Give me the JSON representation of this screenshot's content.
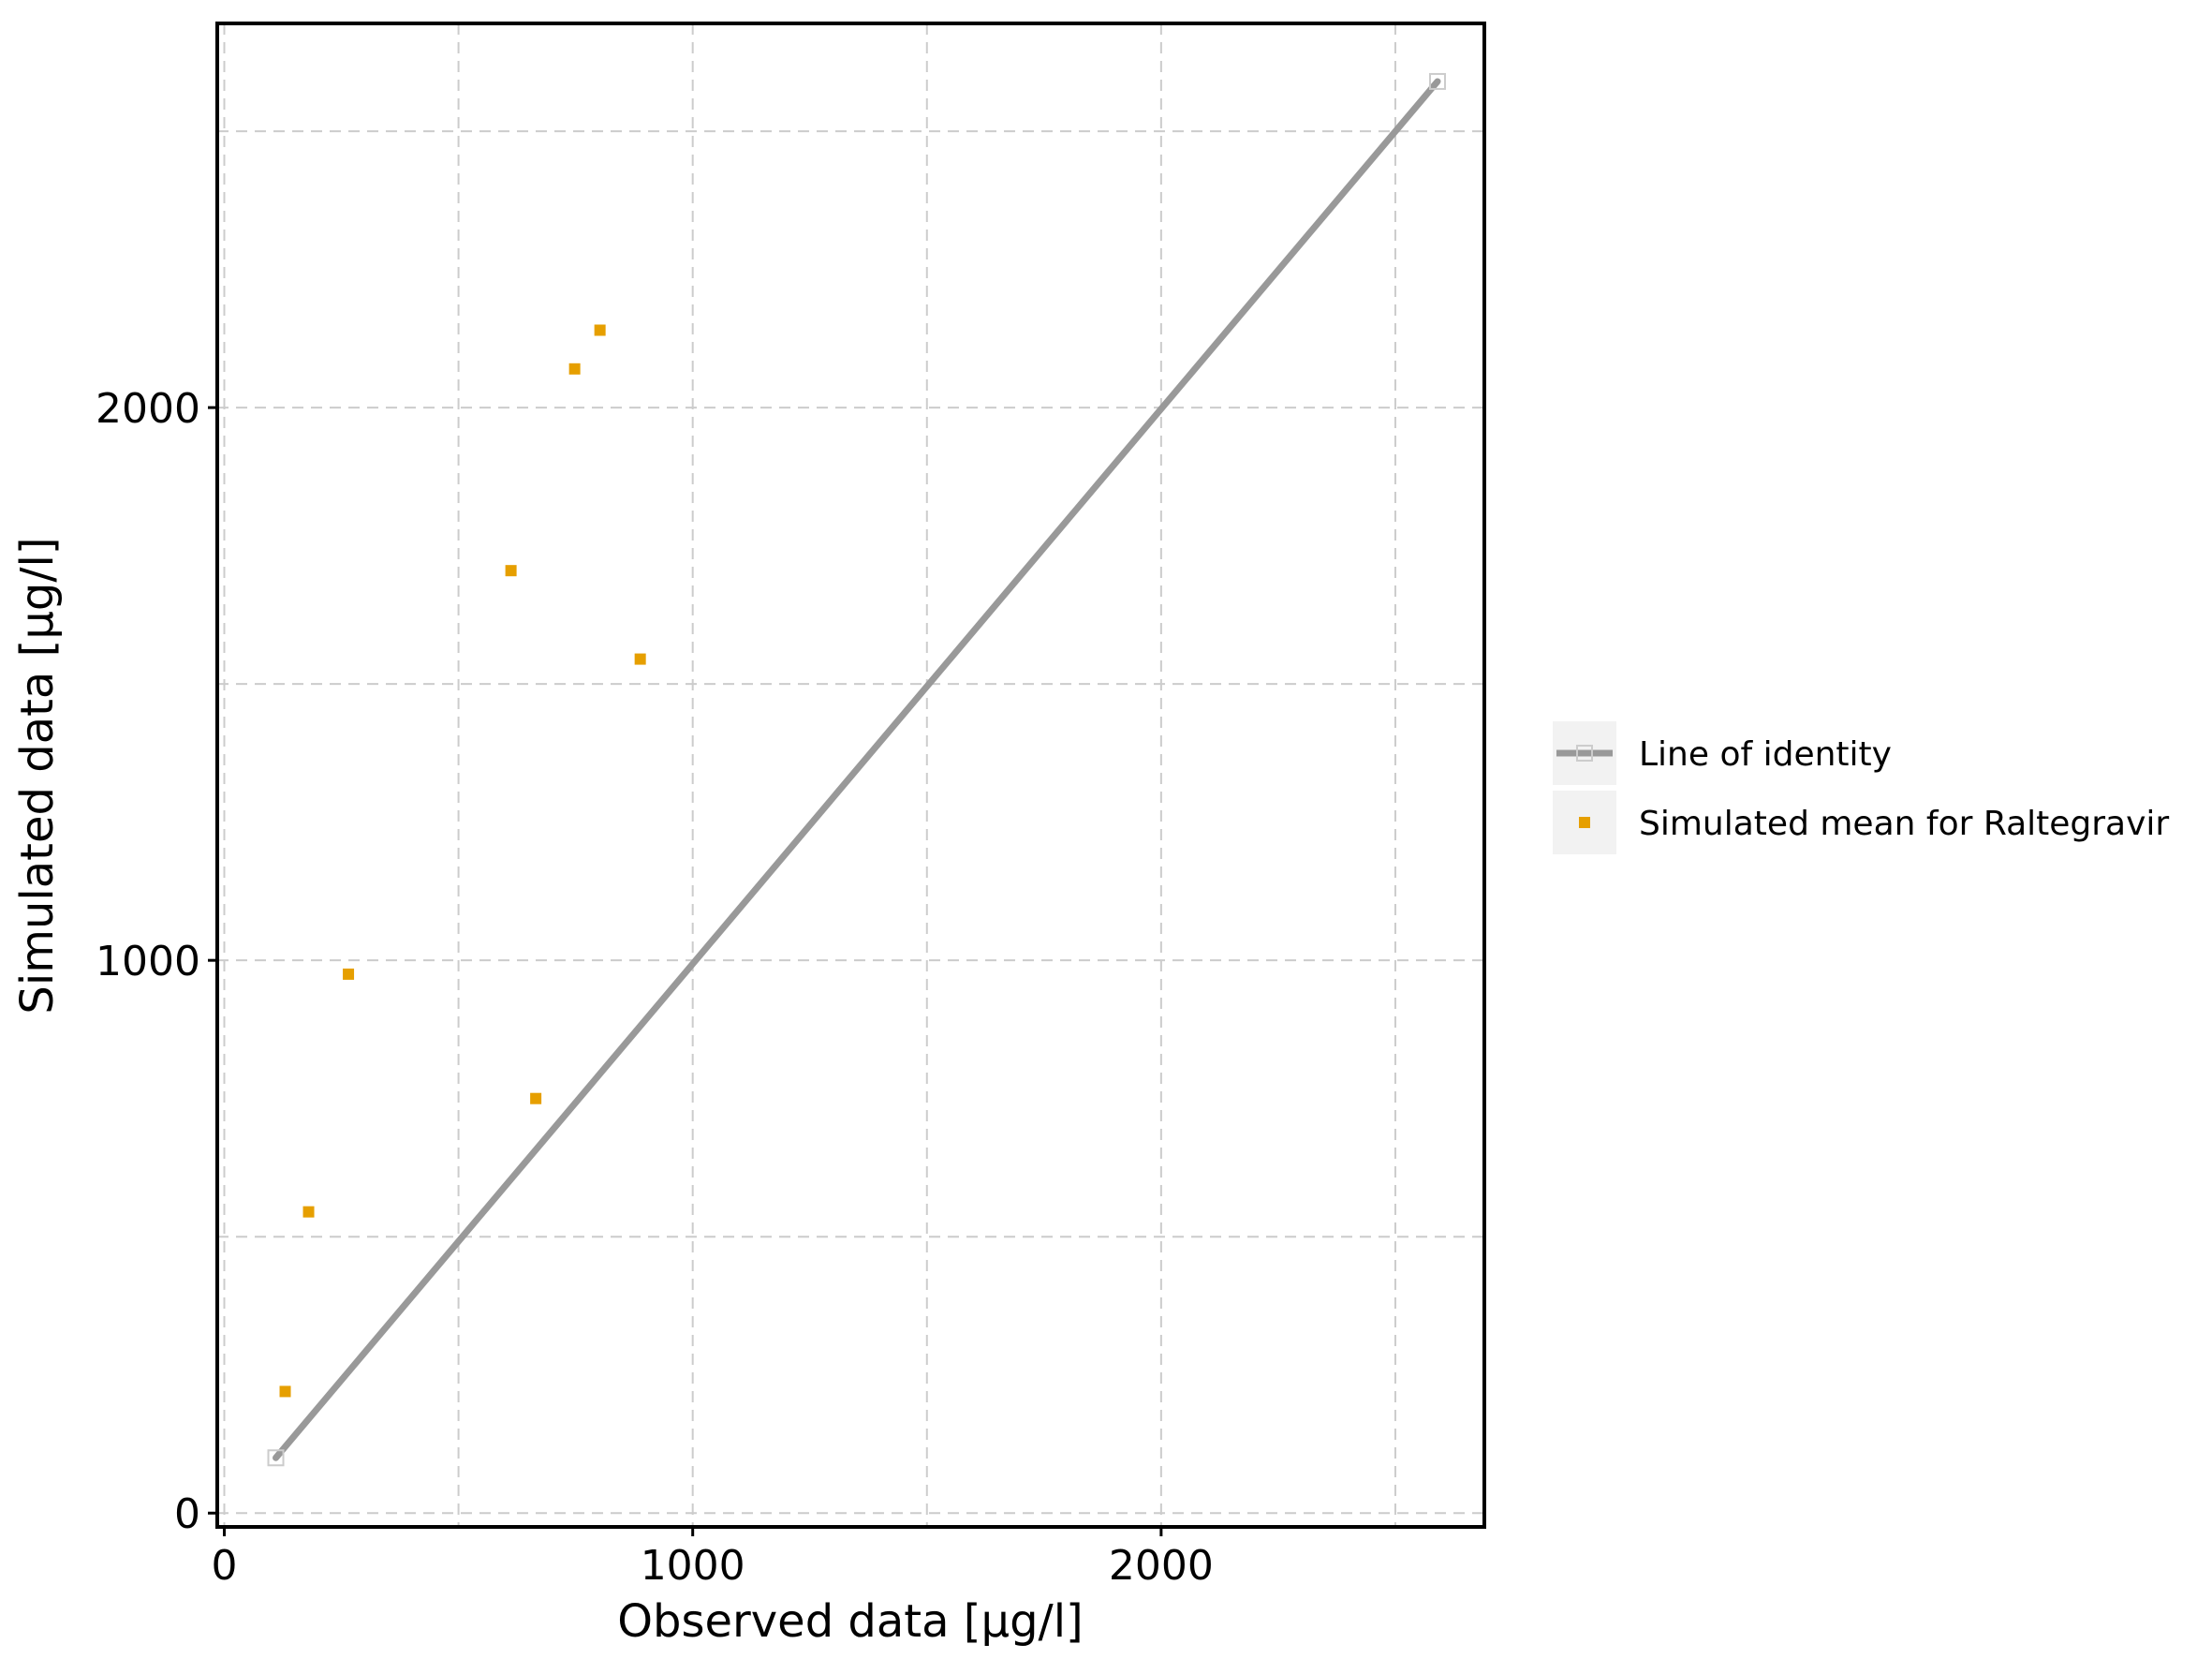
{
  "chart_data": {
    "type": "scatter",
    "xlabel": "Observed data [µg/l]",
    "ylabel": "Simulated data [µg/l]",
    "xlim": [
      -15,
      2690
    ],
    "ylim": [
      -25,
      2695
    ],
    "x_ticks": [
      0,
      1000,
      2000
    ],
    "x_tick_labels": [
      "0",
      "1000",
      "2000"
    ],
    "x_minor_gridlines": [
      500,
      1500,
      2500
    ],
    "y_ticks": [
      0,
      1000,
      2000
    ],
    "y_tick_labels": [
      "0",
      "1000",
      "2000"
    ],
    "y_minor_gridlines": [
      500,
      1500,
      2500
    ],
    "grid": true,
    "legend_position": "right",
    "series": [
      {
        "name": "Line of identity",
        "kind": "line",
        "color": "#999999",
        "points": [
          [
            110,
            100
          ],
          [
            2590,
            2590
          ]
        ]
      },
      {
        "name": "Simulated mean for Raltegravir",
        "kind": "points",
        "color": "#E69F00",
        "points": [
          [
            130,
            220
          ],
          [
            180,
            545
          ],
          [
            265,
            975
          ],
          [
            612,
            1705
          ],
          [
            665,
            750
          ],
          [
            748,
            2070
          ],
          [
            802,
            2140
          ],
          [
            888,
            1545
          ]
        ]
      }
    ]
  }
}
